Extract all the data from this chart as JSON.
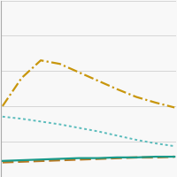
{
  "x": [
    0,
    1,
    2,
    3,
    4,
    5,
    6,
    7,
    8,
    9
  ],
  "line1": [
    1.0,
    1.4,
    1.65,
    1.6,
    1.48,
    1.36,
    1.24,
    1.13,
    1.05,
    0.98
  ],
  "line2": [
    0.85,
    0.82,
    0.78,
    0.74,
    0.69,
    0.64,
    0.58,
    0.52,
    0.47,
    0.43
  ],
  "line3": [
    0.22,
    0.23,
    0.24,
    0.25,
    0.26,
    0.26,
    0.27,
    0.27,
    0.28,
    0.28
  ],
  "line4": [
    0.2,
    0.21,
    0.22,
    0.23,
    0.24,
    0.25,
    0.26,
    0.27,
    0.27,
    0.28
  ],
  "line1_color": "#c8960c",
  "line2_color": "#5abcbc",
  "line3_color": "#1a9a8a",
  "line4_color": "#b87820",
  "bg_color": "#f8f8f8",
  "ylim": [
    0.0,
    2.5
  ],
  "xlim": [
    -0.1,
    9.1
  ],
  "grid_color": "#d0d0d0"
}
